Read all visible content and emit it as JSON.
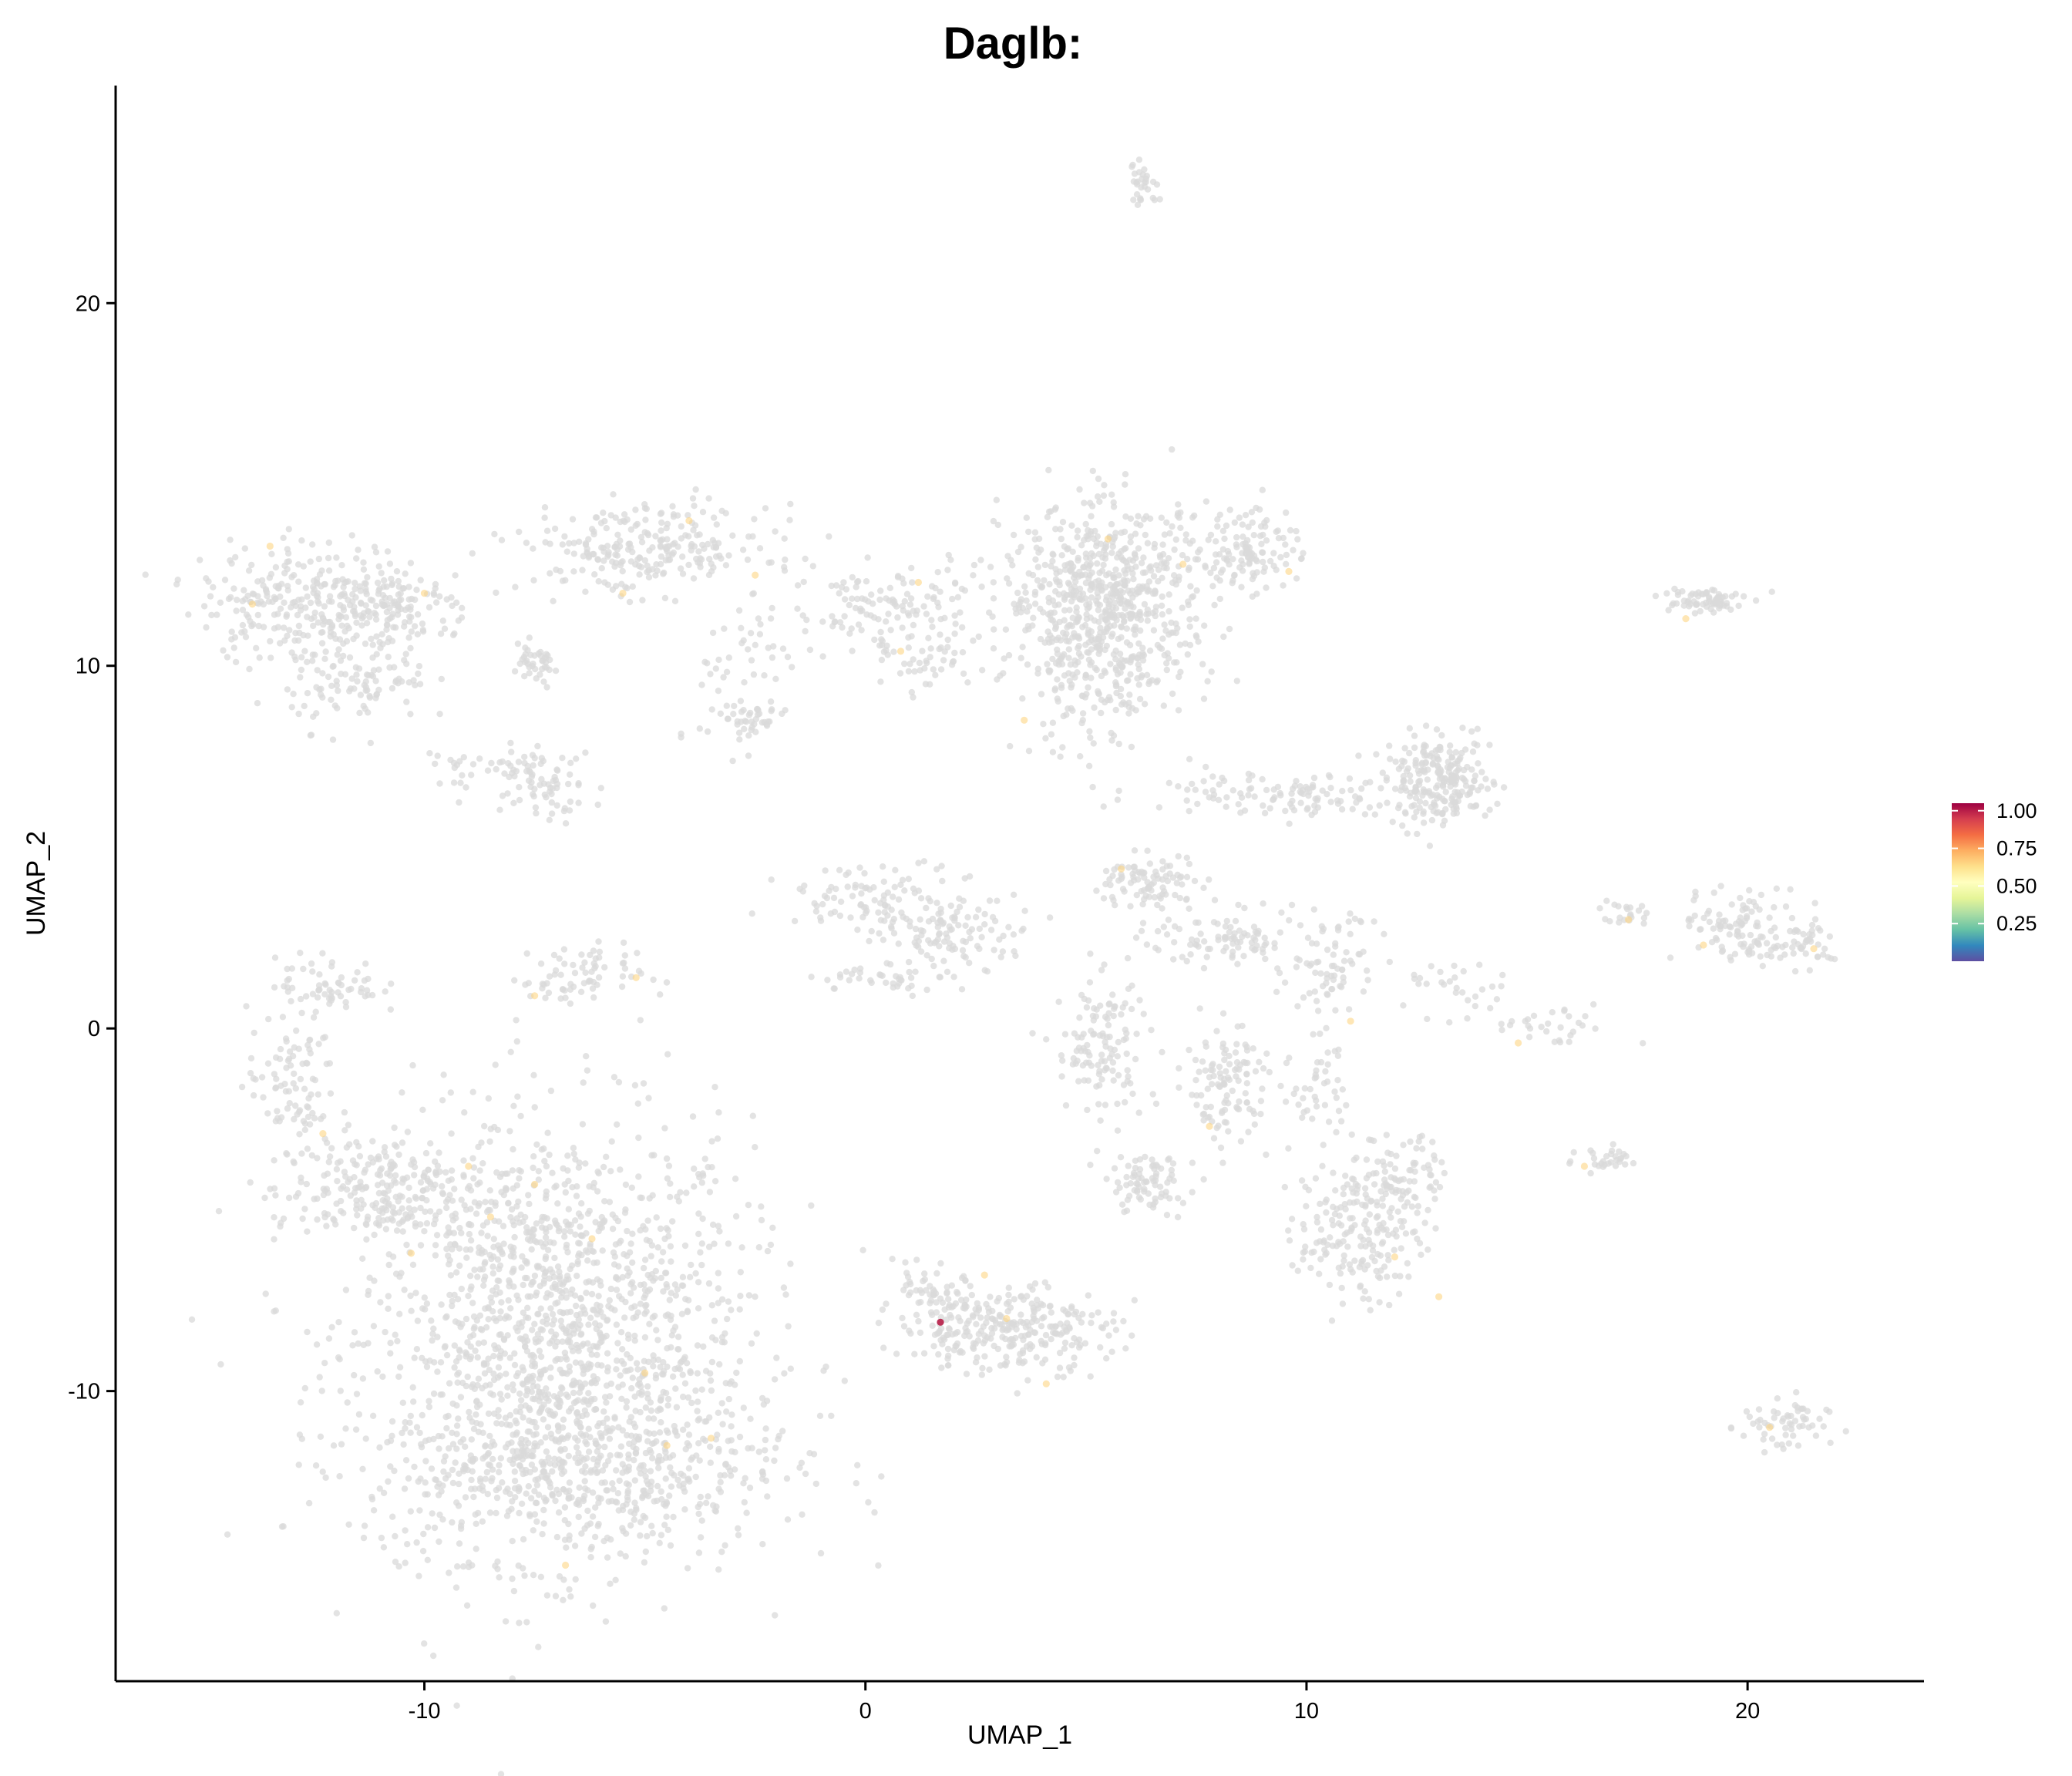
{
  "chart_data": {
    "type": "scatter",
    "title": "Daglb:",
    "xlabel": "UMAP_1",
    "ylabel": "UMAP_2",
    "xlim": [
      -17,
      24
    ],
    "ylim": [
      -18,
      26
    ],
    "x_ticks": [
      -10,
      0,
      10,
      20
    ],
    "x_tick_labels": [
      "-10",
      "0",
      "10",
      "20"
    ],
    "y_ticks": [
      -10,
      0,
      10,
      20
    ],
    "y_tick_labels": [
      "-10",
      "0",
      "10",
      "20"
    ],
    "grid": false,
    "legend_position": "right",
    "color_scale": {
      "name": "Spectral",
      "min": 0,
      "max": 1.05,
      "ticks": [
        1.0,
        0.75,
        0.5,
        0.25
      ],
      "tick_labels": [
        "1.00",
        "0.75",
        "0.50",
        "0.25"
      ],
      "stops": [
        "#5E4FA2",
        "#3288BD",
        "#66C2A5",
        "#ABDDA4",
        "#E6F598",
        "#FFFFBF",
        "#FEE08B",
        "#FDAE61",
        "#F46D43",
        "#D53E4F",
        "#9E0142"
      ]
    },
    "background_color": "#d9d9d9",
    "clusters": [
      {
        "cx": -7,
        "cy": -8.5,
        "sx": 2.2,
        "sy": 3.0,
        "n": 1500
      },
      {
        "cx": -6.5,
        "cy": -12,
        "sx": 2.4,
        "sy": 1.3,
        "n": 500
      },
      {
        "cx": -11,
        "cy": -4.5,
        "sx": 1.2,
        "sy": 0.8,
        "n": 250
      },
      {
        "cx": -13,
        "cy": -1.5,
        "sx": 0.5,
        "sy": 1.0,
        "n": 90
      },
      {
        "cx": -12.2,
        "cy": 1.2,
        "sx": 0.6,
        "sy": 0.4,
        "n": 60
      },
      {
        "cx": -12.5,
        "cy": 11.8,
        "sx": 1.3,
        "sy": 0.8,
        "n": 300
      },
      {
        "cx": -11.5,
        "cy": 9.5,
        "sx": 0.8,
        "sy": 0.6,
        "n": 100
      },
      {
        "cx": -10.5,
        "cy": 11.5,
        "sx": 0.8,
        "sy": 0.5,
        "n": 80
      },
      {
        "cx": -7.5,
        "cy": 10,
        "sx": 0.3,
        "sy": 0.3,
        "n": 40
      },
      {
        "cx": -8.5,
        "cy": 7.2,
        "sx": 0.8,
        "sy": 0.3,
        "n": 40
      },
      {
        "cx": -7.3,
        "cy": 6.8,
        "sx": 0.7,
        "sy": 0.5,
        "n": 60
      },
      {
        "cx": -5,
        "cy": 13.2,
        "sx": 1.4,
        "sy": 0.6,
        "n": 250
      },
      {
        "cx": -6.8,
        "cy": 1.3,
        "sx": 0.5,
        "sy": 0.4,
        "n": 40
      },
      {
        "cx": -5.7,
        "cy": 1.7,
        "sx": 0.5,
        "sy": 0.3,
        "n": 30
      },
      {
        "cx": -2.8,
        "cy": 8.5,
        "sx": 0.5,
        "sy": 0.4,
        "n": 50
      },
      {
        "cx": -2.5,
        "cy": 10.5,
        "sx": 0.6,
        "sy": 1.0,
        "n": 40
      },
      {
        "cx": 0.5,
        "cy": 11.5,
        "sx": 0.9,
        "sy": 0.6,
        "n": 120
      },
      {
        "cx": 1.6,
        "cy": 10,
        "sx": 0.6,
        "sy": 0.4,
        "n": 40
      },
      {
        "cx": 0.5,
        "cy": 3.5,
        "sx": 1.2,
        "sy": 0.5,
        "n": 120
      },
      {
        "cx": 2.2,
        "cy": 2.5,
        "sx": 0.8,
        "sy": 0.4,
        "n": 80
      },
      {
        "cx": 0.5,
        "cy": 1.4,
        "sx": 0.8,
        "sy": 0.2,
        "n": 40
      },
      {
        "cx": 3.2,
        "cy": -8.3,
        "sx": 1.2,
        "sy": 0.6,
        "n": 280
      },
      {
        "cx": 1.5,
        "cy": -7.5,
        "sx": 0.6,
        "sy": 0.4,
        "n": 60
      },
      {
        "cx": 5.5,
        "cy": 12.0,
        "sx": 1.2,
        "sy": 1.2,
        "n": 650
      },
      {
        "cx": 5.2,
        "cy": 9.5,
        "sx": 0.9,
        "sy": 1.0,
        "n": 150
      },
      {
        "cx": 6.3,
        "cy": 23.3,
        "sx": 0.2,
        "sy": 0.3,
        "n": 30
      },
      {
        "cx": 8.8,
        "cy": 13.3,
        "sx": 0.5,
        "sy": 0.6,
        "n": 110
      },
      {
        "cx": 13,
        "cy": 6.8,
        "sx": 0.6,
        "sy": 0.6,
        "n": 230
      },
      {
        "cx": 9.5,
        "cy": 6.5,
        "sx": 1.6,
        "sy": 0.3,
        "n": 120
      },
      {
        "cx": 18.9,
        "cy": 11.8,
        "sx": 0.5,
        "sy": 0.2,
        "n": 70
      },
      {
        "cx": 6.5,
        "cy": 4.0,
        "sx": 0.6,
        "sy": 0.4,
        "n": 90
      },
      {
        "cx": 8.7,
        "cy": 2.5,
        "sx": 1.2,
        "sy": 0.4,
        "n": 120
      },
      {
        "cx": 10.5,
        "cy": 1.3,
        "sx": 0.5,
        "sy": 0.6,
        "n": 50
      },
      {
        "cx": 5.3,
        "cy": -0.5,
        "sx": 0.5,
        "sy": 1.0,
        "n": 120
      },
      {
        "cx": 8.2,
        "cy": -1.5,
        "sx": 0.6,
        "sy": 0.8,
        "n": 120
      },
      {
        "cx": 6.3,
        "cy": -4.3,
        "sx": 0.5,
        "sy": 0.4,
        "n": 80
      },
      {
        "cx": 11.2,
        "cy": -5.5,
        "sx": 0.7,
        "sy": 1.0,
        "n": 200
      },
      {
        "cx": 12.2,
        "cy": -4,
        "sx": 0.5,
        "sy": 0.6,
        "n": 70
      },
      {
        "cx": 10.3,
        "cy": -1.5,
        "sx": 0.3,
        "sy": 0.8,
        "n": 40
      },
      {
        "cx": 20,
        "cy": 2.8,
        "sx": 0.8,
        "sy": 0.5,
        "n": 110
      },
      {
        "cx": 21.2,
        "cy": 2.3,
        "sx": 0.4,
        "sy": 0.3,
        "n": 40
      },
      {
        "cx": 17.3,
        "cy": 3.2,
        "sx": 0.3,
        "sy": 0.2,
        "n": 20
      },
      {
        "cx": 13.5,
        "cy": 1,
        "sx": 0.6,
        "sy": 0.4,
        "n": 30
      },
      {
        "cx": 15.5,
        "cy": 0,
        "sx": 0.7,
        "sy": 0.3,
        "n": 30
      },
      {
        "cx": 16.8,
        "cy": -3.6,
        "sx": 0.4,
        "sy": 0.2,
        "n": 30
      },
      {
        "cx": 20.8,
        "cy": -11,
        "sx": 0.5,
        "sy": 0.4,
        "n": 60
      }
    ],
    "highlighted_points": [
      {
        "x": -8.5,
        "y": -5.2,
        "value": 0.65
      },
      {
        "x": -7.5,
        "y": -4.3,
        "value": 0.65
      },
      {
        "x": -6.2,
        "y": -5.8,
        "value": 0.65
      },
      {
        "x": -5.0,
        "y": -9.5,
        "value": 0.65
      },
      {
        "x": -4.5,
        "y": -11.5,
        "value": 0.65
      },
      {
        "x": -3.5,
        "y": -11.3,
        "value": 0.65
      },
      {
        "x": -6.8,
        "y": -14.8,
        "value": 0.65
      },
      {
        "x": -9.0,
        "y": -3.8,
        "value": 0.65
      },
      {
        "x": -10.3,
        "y": -6.2,
        "value": 0.65
      },
      {
        "x": -12.3,
        "y": -2.9,
        "value": 0.65
      },
      {
        "x": -13.5,
        "y": 13.3,
        "value": 0.65
      },
      {
        "x": -13.9,
        "y": 11.7,
        "value": 0.65
      },
      {
        "x": -10.0,
        "y": 12.0,
        "value": 0.65
      },
      {
        "x": -4.0,
        "y": 14.0,
        "value": 0.65
      },
      {
        "x": -5.5,
        "y": 12.0,
        "value": 0.65
      },
      {
        "x": -2.5,
        "y": 12.5,
        "value": 0.65
      },
      {
        "x": -7.5,
        "y": 0.9,
        "value": 0.65
      },
      {
        "x": -5.2,
        "y": 1.4,
        "value": 0.65
      },
      {
        "x": 1.2,
        "y": 12.3,
        "value": 0.65
      },
      {
        "x": 0.8,
        "y": 10.4,
        "value": 0.65
      },
      {
        "x": 2.7,
        "y": -6.8,
        "value": 0.65
      },
      {
        "x": 3.2,
        "y": -8.0,
        "value": 0.65
      },
      {
        "x": 4.1,
        "y": -9.8,
        "value": 0.65
      },
      {
        "x": 3.6,
        "y": 8.5,
        "value": 0.65
      },
      {
        "x": 5.5,
        "y": 13.5,
        "value": 0.65
      },
      {
        "x": 7.2,
        "y": 12.8,
        "value": 0.65
      },
      {
        "x": 9.6,
        "y": 12.6,
        "value": 0.65
      },
      {
        "x": 5.8,
        "y": 4.4,
        "value": 0.65
      },
      {
        "x": 7.8,
        "y": -2.7,
        "value": 0.65
      },
      {
        "x": 11.0,
        "y": 0.2,
        "value": 0.65
      },
      {
        "x": 12.0,
        "y": -6.3,
        "value": 0.65
      },
      {
        "x": 13.0,
        "y": -7.4,
        "value": 0.65
      },
      {
        "x": 17.3,
        "y": 3.0,
        "value": 0.65
      },
      {
        "x": 19.0,
        "y": 2.3,
        "value": 0.65
      },
      {
        "x": 21.5,
        "y": 2.2,
        "value": 0.65
      },
      {
        "x": 18.6,
        "y": 11.3,
        "value": 0.65
      },
      {
        "x": 20.5,
        "y": -11.0,
        "value": 0.65
      },
      {
        "x": 14.8,
        "y": -0.4,
        "value": 0.65
      },
      {
        "x": 16.3,
        "y": -3.8,
        "value": 0.65
      },
      {
        "x": 1.7,
        "y": -8.1,
        "value": 1.0
      }
    ]
  }
}
